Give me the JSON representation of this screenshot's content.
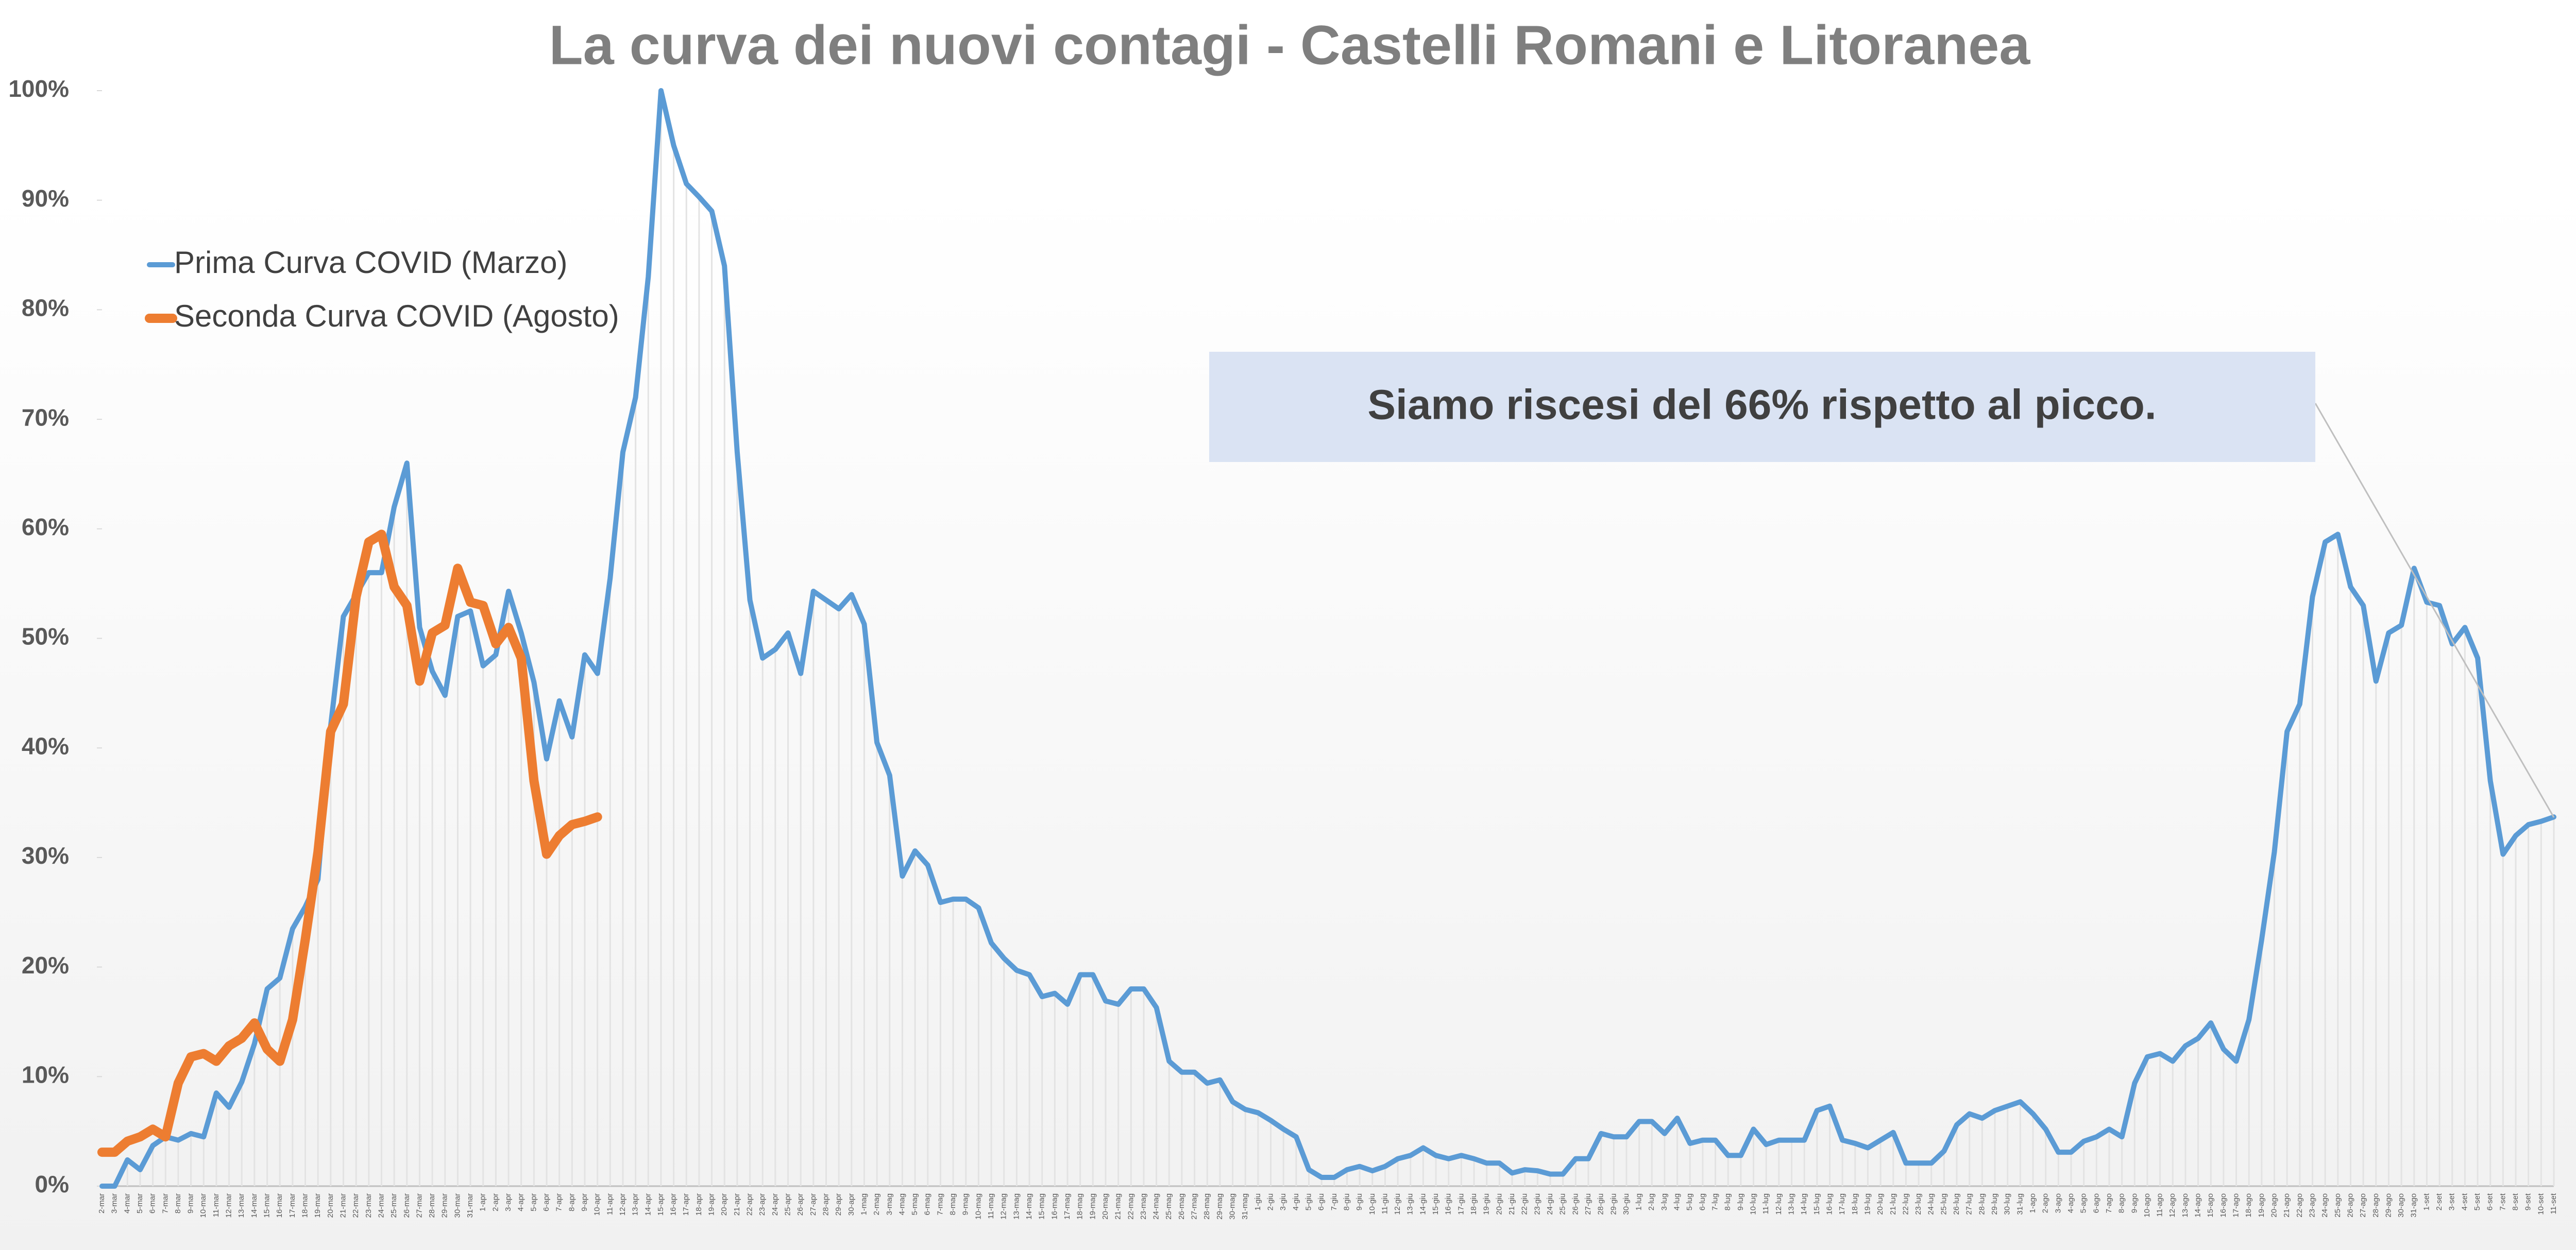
{
  "chart_data": {
    "type": "line",
    "title": "La curva dei nuovi contagi - Castelli Romani e Litoranea",
    "annotation": "Siamo riscesi del 66% rispetto al picco.",
    "legend": "upper left",
    "grid": false,
    "ylim": [
      0,
      100
    ],
    "yticks": [
      {
        "value": 0,
        "label": "0%"
      },
      {
        "value": 10,
        "label": "10%"
      },
      {
        "value": 20,
        "label": "20%"
      },
      {
        "value": 30,
        "label": "30%"
      },
      {
        "value": 40,
        "label": "40%"
      },
      {
        "value": 50,
        "label": "50%"
      },
      {
        "value": 60,
        "label": "60%"
      },
      {
        "value": 70,
        "label": "70%"
      },
      {
        "value": 80,
        "label": "80%"
      },
      {
        "value": 90,
        "label": "90%"
      },
      {
        "value": 100,
        "label": "100%"
      }
    ],
    "categories": [
      "2-mar",
      "3-mar",
      "4-mar",
      "5-mar",
      "6-mar",
      "7-mar",
      "8-mar",
      "9-mar",
      "10-mar",
      "11-mar",
      "12-mar",
      "13-mar",
      "14-mar",
      "15-mar",
      "16-mar",
      "17-mar",
      "18-mar",
      "19-mar",
      "20-mar",
      "21-mar",
      "22-mar",
      "23-mar",
      "24-mar",
      "25-mar",
      "26-mar",
      "27-mar",
      "28-mar",
      "29-mar",
      "30-mar",
      "31-mar",
      "1-apr",
      "2-apr",
      "3-apr",
      "4-apr",
      "5-apr",
      "6-apr",
      "7-apr",
      "8-apr",
      "9-apr",
      "10-apr",
      "11-apr",
      "12-apr",
      "13-apr",
      "14-apr",
      "15-apr",
      "16-apr",
      "17-apr",
      "18-apr",
      "19-apr",
      "20-apr",
      "21-apr",
      "22-apr",
      "23-apr",
      "24-apr",
      "25-apr",
      "26-apr",
      "27-apr",
      "28-apr",
      "29-apr",
      "30-apr",
      "1-mag",
      "2-mag",
      "3-mag",
      "4-mag",
      "5-mag",
      "6-mag",
      "7-mag",
      "8-mag",
      "9-mag",
      "10-mag",
      "11-mag",
      "12-mag",
      "13-mag",
      "14-mag",
      "15-mag",
      "16-mag",
      "17-mag",
      "18-mag",
      "19-mag",
      "20-mag",
      "21-mag",
      "22-mag",
      "23-mag",
      "24-mag",
      "25-mag",
      "26-mag",
      "27-mag",
      "28-mag",
      "29-mag",
      "30-mag",
      "31-mag",
      "1-giu",
      "2-giu",
      "3-giu",
      "4-giu",
      "5-giu",
      "6-giu",
      "7-giu",
      "8-giu",
      "9-giu",
      "10-giu",
      "11-giu",
      "12-giu",
      "13-giu",
      "14-giu",
      "15-giu",
      "16-giu",
      "17-giu",
      "18-giu",
      "19-giu",
      "20-giu",
      "21-giu",
      "22-giu",
      "23-giu",
      "24-giu",
      "25-giu",
      "26-giu",
      "27-giu",
      "28-giu",
      "29-giu",
      "30-giu",
      "1-lug",
      "2-lug",
      "3-lug",
      "4-lug",
      "5-lug",
      "6-lug",
      "7-lug",
      "8-lug",
      "9-lug",
      "10-lug",
      "11-lug",
      "12-lug",
      "13-lug",
      "14-lug",
      "15-lug",
      "16-lug",
      "17-lug",
      "18-lug",
      "19-lug",
      "20-lug",
      "21-lug",
      "22-lug",
      "23-lug",
      "24-lug",
      "25-lug",
      "26-lug",
      "27-lug",
      "28-lug",
      "29-lug",
      "30-lug",
      "31-lug",
      "1-ago",
      "2-ago",
      "3-ago",
      "4-ago",
      "5-ago",
      "6-ago",
      "7-ago",
      "8-ago",
      "9-ago",
      "10-ago",
      "11-ago",
      "12-ago",
      "13-ago",
      "14-ago",
      "15-ago",
      "16-ago",
      "17-ago",
      "18-ago",
      "19-ago",
      "20-ago",
      "21-ago",
      "22-ago",
      "23-ago",
      "24-ago",
      "25-ago",
      "26-ago",
      "27-ago",
      "28-ago",
      "29-ago",
      "30-ago",
      "31-ago",
      "1-set",
      "2-set",
      "3-set",
      "4-set",
      "5-set",
      "6-set",
      "7-set",
      "8-set",
      "9-set",
      "10-set",
      "11-set"
    ],
    "series": [
      {
        "name": "Prima Curva COVID (Marzo)",
        "color": "#5b9bd5",
        "values": [
          0,
          0,
          2.4,
          1.5,
          3.7,
          4.5,
          4.2,
          4.8,
          4.5,
          8.5,
          7.2,
          9.5,
          13,
          18,
          19,
          23.5,
          25.5,
          28,
          42,
          52,
          54,
          56,
          56,
          62,
          66,
          51,
          47,
          44.8,
          52,
          52.5,
          47.5,
          48.5,
          54.3,
          50.5,
          46,
          39,
          44.3,
          41,
          48.5,
          46.8,
          55.5,
          67,
          72,
          83,
          100,
          95,
          91.5,
          90.3,
          89,
          84,
          67,
          53.5,
          48.2,
          49,
          50.5,
          46.8,
          54.3,
          53.5,
          52.7,
          54,
          51.3,
          40.5,
          37.5,
          28.3,
          30.6,
          29.3,
          25.9,
          26.2,
          26.2,
          25.4,
          22.2,
          20.8,
          19.7,
          19.3,
          17.3,
          17.6,
          16.6,
          19.3,
          19.3,
          16.9,
          16.6,
          18,
          18,
          16.3,
          11.4,
          10.4,
          10.4,
          9.4,
          9.7,
          7.7,
          7,
          6.7,
          6,
          5.2,
          4.5,
          1.5,
          0.8,
          0.8,
          1.5,
          1.8,
          1.4,
          1.8,
          2.5,
          2.8,
          3.5,
          2.8,
          2.5,
          2.8,
          2.5,
          2.1,
          2.1,
          1.2,
          1.5,
          1.4,
          1.1,
          1.1,
          2.5,
          2.5,
          4.8,
          4.5,
          4.5,
          5.9,
          5.9,
          4.8,
          6.2,
          3.9,
          4.2,
          4.2,
          2.8,
          2.8,
          5.2,
          3.8,
          4.2,
          4.2,
          4.2,
          6.9,
          7.3,
          4.2,
          3.9,
          3.5,
          4.2,
          4.9,
          2.1,
          2.1,
          2.1,
          3.2,
          5.6,
          6.6,
          6.2,
          6.9,
          7.3,
          7.7,
          6.6,
          5.2,
          3.1,
          3.1,
          4.1,
          4.5,
          5.2,
          4.5,
          9.4,
          11.8,
          12.1,
          11.4,
          12.8,
          13.5,
          14.9,
          12.5,
          11.4,
          15.2,
          22.5,
          30.5,
          41.5,
          44,
          53.8,
          58.8,
          59.5,
          54.7,
          53,
          46.1,
          50.5,
          51.2,
          56.4,
          53.3,
          53,
          49.5,
          51,
          48.2,
          37,
          30.3,
          32,
          33,
          33.3,
          33.7
        ]
      },
      {
        "name": "Seconda Curva COVID (Agosto)",
        "color": "#ed7d31",
        "values": [
          3.1,
          3.1,
          4.1,
          4.5,
          5.2,
          4.5,
          9.4,
          11.8,
          12.1,
          11.4,
          12.8,
          13.5,
          14.9,
          12.5,
          11.4,
          15.2,
          22.5,
          30.5,
          41.5,
          44,
          53.8,
          58.8,
          59.5,
          54.7,
          53,
          46.1,
          50.5,
          51.2,
          56.4,
          53.3,
          53,
          49.5,
          51,
          48.2,
          37,
          30.3,
          32,
          33,
          33.3,
          33.7,
          null,
          null,
          null,
          null,
          null,
          null,
          null,
          null,
          null,
          null,
          null,
          null,
          null,
          null,
          null,
          null,
          null,
          null,
          null,
          null,
          null,
          null,
          null,
          null,
          null,
          null,
          null,
          null,
          null,
          null,
          null,
          null,
          null,
          null,
          null,
          null,
          null,
          null,
          null,
          null,
          null,
          null,
          null,
          null,
          null,
          null,
          null,
          null,
          null,
          null,
          null,
          null,
          null,
          null,
          null,
          null,
          null,
          null,
          null,
          null,
          null,
          null,
          null,
          null,
          null,
          null,
          null,
          null,
          null,
          null,
          null,
          null,
          null,
          null,
          null,
          null,
          null,
          null,
          null,
          null,
          null,
          null,
          null,
          null,
          null,
          null,
          null,
          null,
          null,
          null,
          null,
          null,
          null,
          null,
          null,
          null,
          null,
          null,
          null,
          null,
          null,
          null,
          null,
          null,
          null,
          null,
          null,
          null,
          null,
          null,
          null,
          null,
          null,
          null,
          null,
          null,
          null,
          null,
          null,
          null,
          null,
          null,
          null,
          null,
          null,
          null,
          null,
          null,
          null,
          null,
          null,
          null,
          null,
          null,
          null,
          null,
          null,
          null,
          null,
          null,
          null,
          null,
          null,
          null,
          null,
          null,
          null,
          null,
          null,
          null,
          null,
          null,
          null,
          null
        ]
      }
    ]
  }
}
